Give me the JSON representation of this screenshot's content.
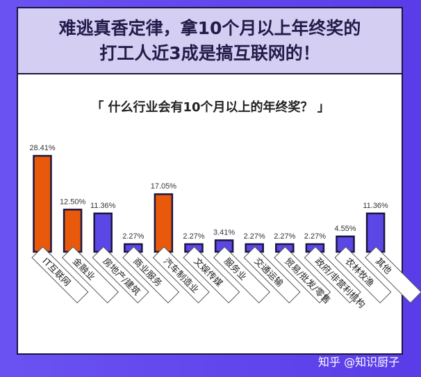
{
  "title_line1": "难逃真香定律，拿10个月以上年终奖的",
  "title_line2": "打工人近3成是搞互联网的！",
  "watermark": "知乎 @知识厨子",
  "colors": {
    "highlight": "#e8590c",
    "normal": "#5b47e6",
    "background": "#5a3ce8",
    "border": "#1b1540"
  },
  "chart_data": {
    "type": "bar",
    "title": "「 什么行业会有10个月以上的年终奖？ 」",
    "categories": [
      "IT互联网",
      "金融业",
      "房地产/建筑",
      "商业服务",
      "汽车制造业",
      "文娱传媒",
      "服务业",
      "交通运输",
      "贸易/批发/零售",
      "政府/非营利机构",
      "农林牧渔",
      "其他"
    ],
    "values": [
      28.41,
      12.5,
      11.36,
      2.27,
      17.05,
      2.27,
      3.41,
      2.27,
      2.27,
      2.27,
      4.55,
      11.36
    ],
    "labels": [
      "28.41%",
      "12.50%",
      "11.36%",
      "2.27%",
      "17.05%",
      "2.27%",
      "3.41%",
      "2.27%",
      "2.27%",
      "2.27%",
      "4.55%",
      "11.36%"
    ],
    "highlighted": [
      true,
      true,
      false,
      false,
      true,
      false,
      false,
      false,
      false,
      false,
      false,
      false
    ],
    "unit": "%",
    "grid": false,
    "ylim": [
      0,
      30
    ]
  }
}
